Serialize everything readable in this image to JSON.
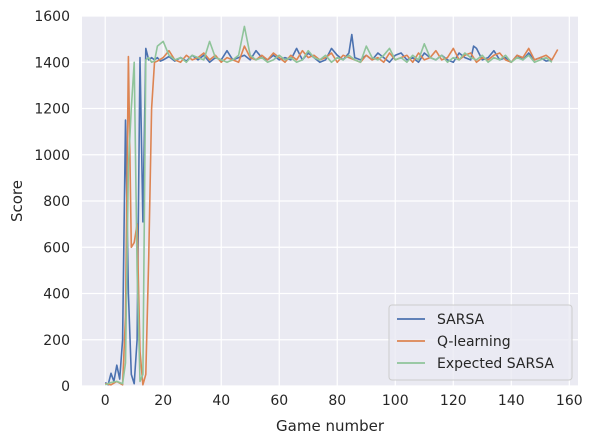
{
  "chart_data": {
    "type": "line",
    "title": "",
    "xlabel": "Game number",
    "ylabel": "Score",
    "xlim": [
      -8,
      163
    ],
    "ylim": [
      0,
      1600
    ],
    "xticks": [
      0,
      20,
      40,
      60,
      80,
      100,
      120,
      140,
      160
    ],
    "yticks": [
      0,
      200,
      400,
      600,
      800,
      1000,
      1200,
      1400,
      1600
    ],
    "grid": true,
    "legend_position": "lower-right",
    "series": [
      {
        "name": "SARSA",
        "color": "#4c72b0",
        "x": [
          0,
          1,
          2,
          3,
          4,
          5,
          6,
          7,
          8,
          9,
          10,
          11,
          12,
          13,
          14,
          15,
          16,
          17,
          18,
          19,
          20,
          22,
          24,
          26,
          28,
          30,
          32,
          34,
          36,
          38,
          40,
          42,
          44,
          46,
          48,
          50,
          52,
          54,
          56,
          58,
          60,
          62,
          64,
          66,
          68,
          70,
          72,
          74,
          76,
          78,
          80,
          82,
          84,
          85,
          86,
          88,
          90,
          92,
          94,
          96,
          98,
          100,
          102,
          104,
          106,
          108,
          110,
          112,
          114,
          116,
          118,
          120,
          122,
          124,
          126,
          127,
          128,
          130,
          132,
          134,
          136,
          138,
          140,
          142,
          144,
          146,
          148,
          150,
          152,
          154
        ],
        "y": [
          15,
          5,
          55,
          20,
          90,
          30,
          200,
          1150,
          400,
          50,
          10,
          200,
          1420,
          710,
          1460,
          1410,
          1420,
          1410,
          1420,
          1405,
          1410,
          1425,
          1405,
          1420,
          1405,
          1430,
          1410,
          1430,
          1400,
          1420,
          1410,
          1450,
          1410,
          1420,
          1430,
          1410,
          1450,
          1420,
          1410,
          1430,
          1410,
          1420,
          1410,
          1460,
          1410,
          1440,
          1420,
          1400,
          1410,
          1460,
          1430,
          1410,
          1440,
          1520,
          1420,
          1410,
          1430,
          1410,
          1440,
          1420,
          1400,
          1430,
          1440,
          1410,
          1420,
          1400,
          1440,
          1420,
          1410,
          1430,
          1410,
          1400,
          1440,
          1420,
          1410,
          1470,
          1460,
          1410,
          1420,
          1450,
          1410,
          1420,
          1400,
          1430,
          1410,
          1440,
          1410,
          1420,
          1405,
          1410
        ]
      },
      {
        "name": "Q-learning",
        "color": "#dd8452",
        "x": [
          0,
          2,
          4,
          6,
          7,
          8,
          9,
          10,
          11,
          12,
          13,
          14,
          15,
          16,
          17,
          18,
          20,
          22,
          24,
          26,
          28,
          30,
          32,
          34,
          36,
          38,
          40,
          42,
          44,
          46,
          48,
          50,
          52,
          54,
          56,
          58,
          60,
          62,
          64,
          66,
          68,
          70,
          72,
          74,
          76,
          78,
          80,
          82,
          84,
          86,
          88,
          90,
          92,
          94,
          96,
          98,
          100,
          102,
          104,
          106,
          108,
          110,
          112,
          114,
          116,
          118,
          120,
          122,
          124,
          126,
          128,
          130,
          132,
          134,
          136,
          138,
          140,
          142,
          144,
          146,
          148,
          150,
          152,
          154,
          156
        ],
        "y": [
          10,
          5,
          20,
          5,
          300,
          1425,
          600,
          620,
          700,
          150,
          5,
          50,
          550,
          1200,
          1400,
          1405,
          1420,
          1450,
          1410,
          1400,
          1430,
          1410,
          1420,
          1440,
          1410,
          1430,
          1400,
          1420,
          1410,
          1400,
          1470,
          1420,
          1410,
          1430,
          1410,
          1440,
          1420,
          1400,
          1430,
          1410,
          1450,
          1420,
          1430,
          1410,
          1420,
          1440,
          1400,
          1430,
          1420,
          1410,
          1400,
          1430,
          1410,
          1420,
          1400,
          1440,
          1410,
          1420,
          1430,
          1400,
          1440,
          1410,
          1420,
          1450,
          1410,
          1420,
          1460,
          1410,
          1430,
          1440,
          1400,
          1420,
          1410,
          1430,
          1440,
          1410,
          1400,
          1430,
          1420,
          1460,
          1410,
          1420,
          1430,
          1410,
          1455
        ]
      },
      {
        "name": "Expected SARSA",
        "color": "#8fc49a",
        "x": [
          0,
          2,
          4,
          6,
          7,
          8,
          9,
          10,
          11,
          12,
          13,
          14,
          15,
          16,
          17,
          18,
          19,
          20,
          22,
          24,
          26,
          28,
          30,
          32,
          34,
          36,
          38,
          40,
          42,
          44,
          46,
          48,
          50,
          52,
          54,
          56,
          58,
          60,
          62,
          64,
          66,
          68,
          70,
          72,
          74,
          76,
          78,
          80,
          82,
          84,
          86,
          88,
          90,
          92,
          94,
          96,
          98,
          100,
          102,
          104,
          106,
          108,
          110,
          112,
          114,
          116,
          118,
          120,
          122,
          124,
          126,
          128,
          130,
          132,
          134,
          136,
          138,
          140,
          142,
          144,
          146,
          148,
          150,
          152,
          154
        ],
        "y": [
          5,
          15,
          20,
          10,
          100,
          950,
          1200,
          1400,
          500,
          20,
          50,
          1410,
          1420,
          1400,
          1405,
          1470,
          1480,
          1490,
          1430,
          1410,
          1420,
          1400,
          1430,
          1420,
          1410,
          1490,
          1420,
          1410,
          1400,
          1410,
          1430,
          1555,
          1430,
          1410,
          1420,
          1400,
          1410,
          1430,
          1410,
          1420,
          1400,
          1410,
          1450,
          1420,
          1410,
          1430,
          1400,
          1420,
          1410,
          1430,
          1410,
          1400,
          1470,
          1420,
          1410,
          1430,
          1460,
          1410,
          1420,
          1400,
          1430,
          1410,
          1480,
          1420,
          1410,
          1430,
          1400,
          1420,
          1410,
          1440,
          1420,
          1410,
          1430,
          1400,
          1420,
          1410,
          1430,
          1400,
          1420,
          1410,
          1430,
          1400,
          1410,
          1420,
          1400
        ]
      }
    ]
  }
}
